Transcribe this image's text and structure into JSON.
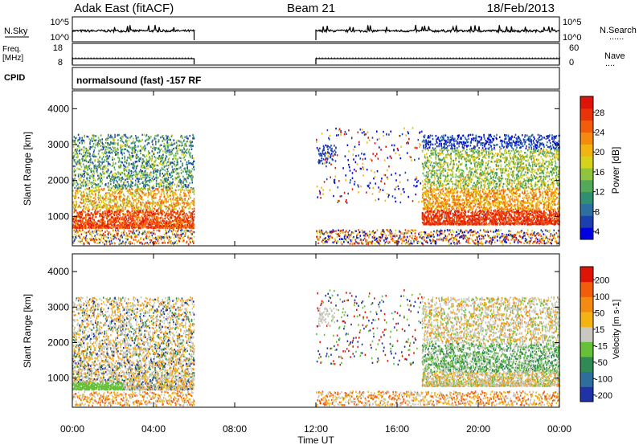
{
  "header": {
    "site": "Adak East (fitACF)",
    "beam": "Beam 21",
    "date": "18/Feb/2013"
  },
  "side_labels": {
    "nsky": "N.Sky",
    "freq_line1": "Freq.",
    "freq_line2": "[MHz]",
    "cpid": "CPID",
    "nsearch": "N.Search",
    "nave": "Nave",
    "dotted": "......",
    "dotted_short": "...."
  },
  "noise_axis": {
    "top": "10^5",
    "bottom": "10^0"
  },
  "freq_axis": {
    "top": "18",
    "bottom": "8"
  },
  "nave_axis": {
    "top": "60",
    "bottom": "0"
  },
  "cpid_text": "normalsound (fast) -157 RF",
  "x_axis": {
    "label": "Time UT",
    "ticks": [
      "00:00",
      "04:00",
      "08:00",
      "12:00",
      "16:00",
      "20:00",
      "00:00"
    ]
  },
  "y_axis_label": "Slant Range [km]",
  "chart_data": [
    {
      "type": "heatmap",
      "name": "power",
      "ylabel": "Slant Range [km]",
      "xlabel": "Time UT",
      "xlim_hours": [
        0,
        24
      ],
      "ylim_km": [
        180,
        4500
      ],
      "yticks": [
        "4000",
        "3000",
        "2000",
        "1000"
      ],
      "yticks_values": [
        4000,
        3000,
        2000,
        1000
      ],
      "colorbar": {
        "label": "Power [dB]",
        "ticks": [
          "28",
          "24",
          "20",
          "16",
          "12",
          "8",
          "4"
        ],
        "colors": [
          "#0000e0",
          "#1c3fae",
          "#2c6fa0",
          "#2f8f6f",
          "#52a95a",
          "#8fc43c",
          "#d6d21a",
          "#f3b312",
          "#f58a10",
          "#f25d0c",
          "#e93309",
          "#df1408"
        ]
      },
      "data_gaps_hours": [
        [
          6,
          12
        ]
      ]
    },
    {
      "type": "heatmap",
      "name": "velocity",
      "ylabel": "Slant Range [km]",
      "xlabel": "Time UT",
      "xlim_hours": [
        0,
        24
      ],
      "ylim_km": [
        180,
        4500
      ],
      "yticks": [
        "4000",
        "3000",
        "2000",
        "1000"
      ],
      "yticks_values": [
        4000,
        3000,
        2000,
        1000
      ],
      "colorbar": {
        "label": "Velocity [m s-1]",
        "ticks": [
          "200",
          "100",
          "50",
          "15",
          "-15",
          "-50",
          "-100",
          "-200"
        ],
        "colors": [
          "#2033a6",
          "#2d6e9a",
          "#2f8a55",
          "#67c038",
          "#c8c8c0",
          "#f3b312",
          "#f58a10",
          "#f25d0c",
          "#df1408"
        ]
      },
      "data_gaps_hours": [
        [
          6,
          12
        ]
      ]
    }
  ]
}
